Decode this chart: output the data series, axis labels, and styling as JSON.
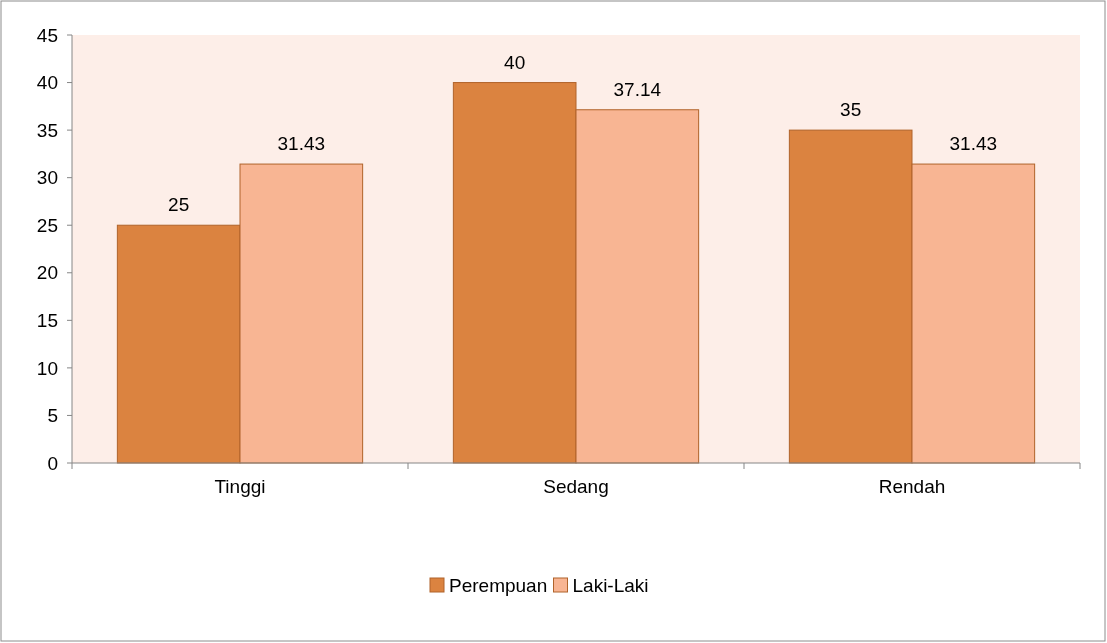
{
  "chart_data": {
    "type": "bar",
    "categories": [
      "Tinggi",
      "Sedang",
      "Rendah"
    ],
    "series": [
      {
        "name": "Perempuan",
        "color": "#db8340",
        "values": [
          25,
          40,
          35
        ]
      },
      {
        "name": "Laki-Laki",
        "color": "#f8b593",
        "values": [
          31.43,
          37.14,
          31.43
        ]
      }
    ],
    "ylim": [
      0,
      45
    ],
    "yticks": [
      0,
      5,
      10,
      15,
      20,
      25,
      30,
      35,
      40,
      45
    ],
    "data_labels": true,
    "legend": "bottom",
    "grid": false
  }
}
